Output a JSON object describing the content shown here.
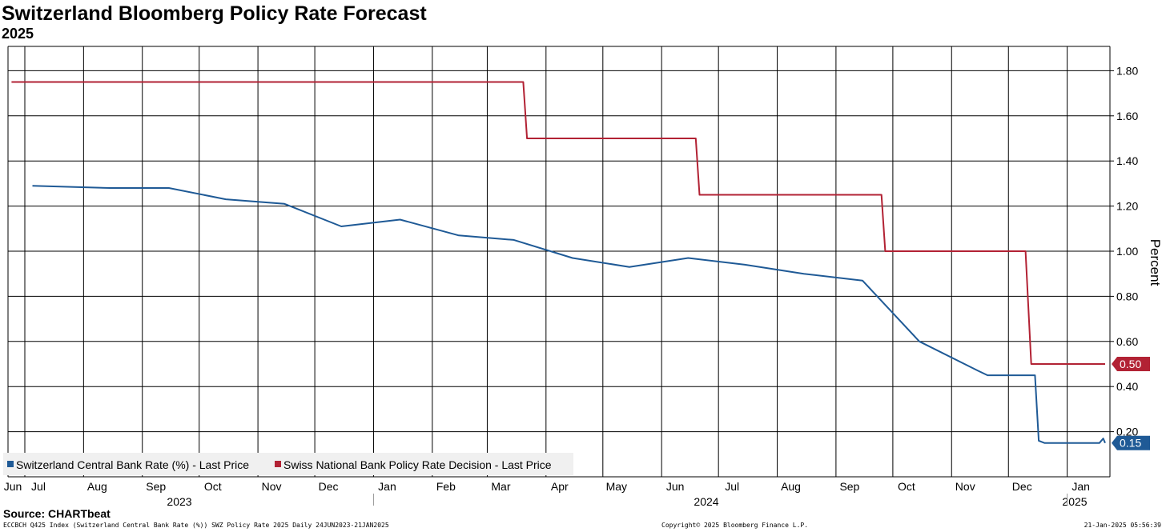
{
  "title": "Switzerland Bloomberg Policy Rate Forecast",
  "subtitle": "2025",
  "source": "Source: CHARTbeat",
  "footer": {
    "left": "ECCBCH Q425 Index (Switzerland Central Bank Rate (%)) SWZ Policy Rate 2025  Daily 24JUN2023-21JAN2025",
    "middle": "Copyright© 2025 Bloomberg Finance L.P.",
    "right": "21-Jan-2025 05:56:39"
  },
  "colors": {
    "series1": "#1f5a96",
    "series2": "#b22234",
    "grid": "#000000",
    "legend_bg": "#f0f0f0"
  },
  "chart_data": {
    "type": "line",
    "ylabel": "Percent",
    "ylim": [
      0,
      1.9
    ],
    "yticks": [
      "0.20",
      "0.40",
      "0.60",
      "0.80",
      "1.00",
      "1.20",
      "1.40",
      "1.60",
      "1.80"
    ],
    "grid": true,
    "legend_position": "bottom-left",
    "x_month_labels": [
      "Jun",
      "Jul",
      "Aug",
      "Sep",
      "Oct",
      "Nov",
      "Dec",
      "Jan",
      "Feb",
      "Mar",
      "Apr",
      "May",
      "Jun",
      "Jul",
      "Aug",
      "Sep",
      "Oct",
      "Nov",
      "Dec",
      "Jan"
    ],
    "x_year_labels": [
      "2023",
      "2024",
      "2025"
    ],
    "series": [
      {
        "name": "Switzerland Central Bank Rate (%) - Last Price",
        "last_value_label": "0.15",
        "points": [
          [
            "2023-07-05",
            1.29
          ],
          [
            "2023-08-15",
            1.28
          ],
          [
            "2023-09-15",
            1.28
          ],
          [
            "2023-10-15",
            1.23
          ],
          [
            "2023-11-15",
            1.21
          ],
          [
            "2023-12-15",
            1.11
          ],
          [
            "2024-01-15",
            1.14
          ],
          [
            "2024-02-15",
            1.07
          ],
          [
            "2024-03-15",
            1.05
          ],
          [
            "2024-04-15",
            0.97
          ],
          [
            "2024-05-15",
            0.93
          ],
          [
            "2024-06-15",
            0.97
          ],
          [
            "2024-07-15",
            0.94
          ],
          [
            "2024-08-15",
            0.9
          ],
          [
            "2024-09-15",
            0.87
          ],
          [
            "2024-10-15",
            0.6
          ],
          [
            "2024-11-15",
            0.47
          ],
          [
            "2024-11-20",
            0.45
          ],
          [
            "2024-12-15",
            0.45
          ],
          [
            "2024-12-17",
            0.16
          ],
          [
            "2024-12-20",
            0.15
          ],
          [
            "2025-01-18",
            0.15
          ],
          [
            "2025-01-20",
            0.17
          ],
          [
            "2025-01-21",
            0.15
          ]
        ]
      },
      {
        "name": "Swiss National Bank Policy Rate Decision - Last Price",
        "last_value_label": "0.50",
        "points": [
          [
            "2023-06-24",
            1.75
          ],
          [
            "2024-03-20",
            1.75
          ],
          [
            "2024-03-22",
            1.5
          ],
          [
            "2024-06-19",
            1.5
          ],
          [
            "2024-06-21",
            1.25
          ],
          [
            "2024-09-25",
            1.25
          ],
          [
            "2024-09-27",
            1.0
          ],
          [
            "2024-12-10",
            1.0
          ],
          [
            "2024-12-13",
            0.5
          ],
          [
            "2025-01-21",
            0.5
          ]
        ]
      }
    ]
  }
}
